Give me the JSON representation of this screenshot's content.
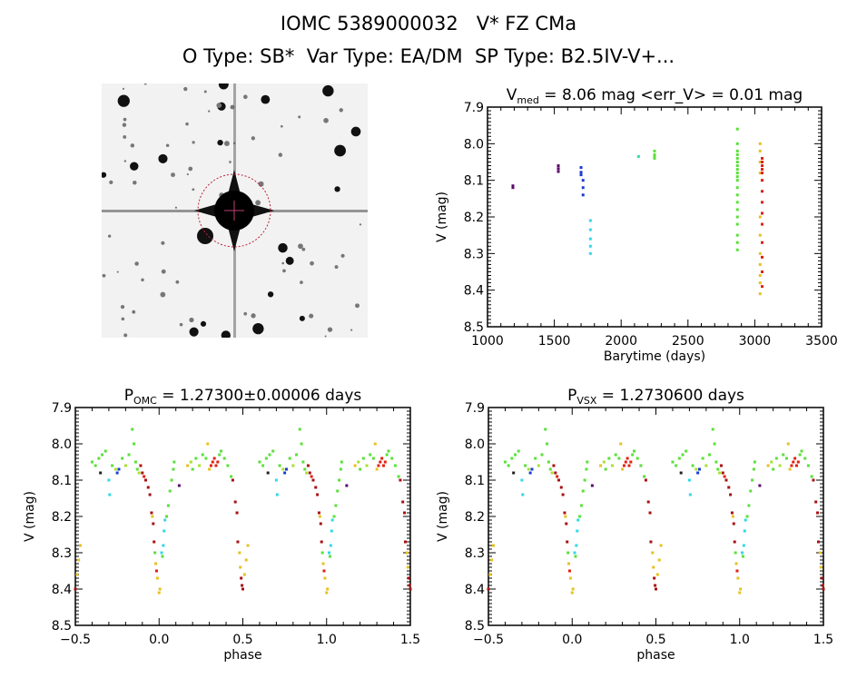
{
  "header": {
    "title_line1": "IOMC 5389000032   V* FZ CMa",
    "title_line2": "O Type: SB*  Var Type: EA/DM  SP Type: B2.5IV-V+..."
  },
  "image_panel": {
    "description_kind": "sky-image",
    "colormap": "inverted-grayscale",
    "circle_color": "#c0203a"
  },
  "colors": {
    "purple": "#5a0a6a",
    "blue": "#1a3cd0",
    "cyan": "#30d8e8",
    "teal": "#30e0a0",
    "green": "#5ae03a",
    "lime": "#a8e030",
    "yellow": "#e8c020",
    "red": "#e02010",
    "darkred": "#a81010",
    "black": "#202020"
  },
  "chart_data": [
    {
      "type": "scatter",
      "title_main": "V",
      "title_sub": "med",
      "title_rest": " = 8.06 mag <err_V> = 0.01 mag",
      "xlabel": "Barytime (days)",
      "ylabel": "V (mag)",
      "xlim": [
        1000,
        3500
      ],
      "ylim": [
        8.5,
        7.9
      ],
      "xticks": [
        "1000",
        "1500",
        "2000",
        "2500",
        "3000",
        "3500"
      ],
      "yticks": [
        "7.9",
        "8.0",
        "8.1",
        "8.2",
        "8.3",
        "8.4",
        "8.5"
      ],
      "groups": [
        {
          "color": "purple",
          "t": 1190,
          "v": [
            8.115,
            8.12
          ]
        },
        {
          "color": "purple",
          "t": 1530,
          "v": [
            8.06,
            8.068,
            8.076
          ]
        },
        {
          "color": "blue",
          "t": 1700,
          "v": [
            8.065,
            8.078,
            8.085
          ]
        },
        {
          "color": "blue",
          "t": 1715,
          "v": [
            8.1,
            8.12,
            8.14
          ]
        },
        {
          "color": "cyan",
          "t": 1770,
          "v": [
            8.21,
            8.235,
            8.26,
            8.28,
            8.3
          ]
        },
        {
          "color": "teal",
          "t": 2130,
          "v": [
            8.035
          ]
        },
        {
          "color": "green",
          "t": 2250,
          "v": [
            8.02,
            8.03,
            8.035,
            8.04
          ]
        },
        {
          "color": "green",
          "t": 2870,
          "v": [
            7.96,
            8.0,
            8.02,
            8.03,
            8.04,
            8.05,
            8.06,
            8.07,
            8.08,
            8.09,
            8.1,
            8.12,
            8.14,
            8.16,
            8.18,
            8.2,
            8.22,
            8.25,
            8.27,
            8.29
          ]
        },
        {
          "color": "yellow",
          "t": 3040,
          "v": [
            8.0,
            8.02,
            8.05,
            8.08,
            8.2,
            8.25,
            8.3,
            8.33,
            8.36,
            8.38,
            8.41
          ]
        },
        {
          "color": "red",
          "t": 3055,
          "v": [
            8.04,
            8.05,
            8.06,
            8.07,
            8.08,
            8.1,
            8.13,
            8.16,
            8.19,
            8.22,
            8.27,
            8.31,
            8.35,
            8.39
          ]
        }
      ]
    },
    {
      "type": "scatter",
      "title_main": "P",
      "title_sub": "OMC",
      "title_rest": " = 1.27300±0.00006 days",
      "xlabel": "phase",
      "ylabel": "V (mag)",
      "xlim": [
        -0.5,
        1.5
      ],
      "ylim": [
        8.5,
        7.9
      ],
      "xticks": [
        "-0.5",
        "0.0",
        "0.5",
        "1.0",
        "1.5"
      ],
      "yticks": [
        "7.9",
        "8.0",
        "8.1",
        "8.2",
        "8.3",
        "8.4",
        "8.5"
      ]
    },
    {
      "type": "scatter",
      "title_main": "P",
      "title_sub": "VSX",
      "title_rest": " = 1.2730600 days",
      "xlabel": "phase",
      "ylabel": "V (mag)",
      "xlim": [
        -0.5,
        1.5
      ],
      "ylim": [
        8.5,
        7.9
      ],
      "xticks": [
        "-0.5",
        "0.0",
        "0.5",
        "1.0",
        "1.5"
      ],
      "yticks": [
        "7.9",
        "8.0",
        "8.1",
        "8.2",
        "8.3",
        "8.4",
        "8.5"
      ]
    }
  ],
  "phase_points": [
    [
      0.0,
      8.41,
      "yellow"
    ],
    [
      0.005,
      8.4,
      "yellow"
    ],
    [
      0.99,
      8.37,
      "yellow"
    ],
    [
      0.985,
      8.35,
      "red"
    ],
    [
      0.98,
      8.33,
      "yellow"
    ],
    [
      0.975,
      8.3,
      "green"
    ],
    [
      0.97,
      8.27,
      "darkred"
    ],
    [
      0.965,
      8.22,
      "darkred"
    ],
    [
      0.96,
      8.2,
      "yellow"
    ],
    [
      0.955,
      8.19,
      "darkred"
    ],
    [
      0.945,
      8.14,
      "darkred"
    ],
    [
      0.935,
      8.12,
      "darkred"
    ],
    [
      0.92,
      8.1,
      "darkred"
    ],
    [
      0.91,
      8.09,
      "red"
    ],
    [
      0.9,
      8.08,
      "darkred"
    ],
    [
      0.89,
      8.06,
      "darkred"
    ],
    [
      0.015,
      8.3,
      "cyan"
    ],
    [
      0.025,
      8.28,
      "cyan"
    ],
    [
      0.03,
      8.24,
      "cyan"
    ],
    [
      0.035,
      8.21,
      "cyan"
    ],
    [
      0.02,
      8.31,
      "green"
    ],
    [
      0.045,
      8.2,
      "green"
    ],
    [
      0.055,
      8.17,
      "green"
    ],
    [
      0.065,
      8.13,
      "green"
    ],
    [
      0.075,
      8.1,
      "green"
    ],
    [
      0.085,
      8.07,
      "green"
    ],
    [
      0.09,
      8.05,
      "green"
    ],
    [
      0.12,
      8.115,
      "purple"
    ],
    [
      0.17,
      8.06,
      "yellow"
    ],
    [
      0.19,
      8.05,
      "lime"
    ],
    [
      0.2,
      8.07,
      "green"
    ],
    [
      0.22,
      8.04,
      "green"
    ],
    [
      0.24,
      8.06,
      "lime"
    ],
    [
      0.26,
      8.03,
      "green"
    ],
    [
      0.28,
      8.04,
      "green"
    ],
    [
      0.29,
      8.0,
      "yellow"
    ],
    [
      0.3,
      8.07,
      "yellow"
    ],
    [
      0.31,
      8.06,
      "red"
    ],
    [
      0.32,
      8.05,
      "red"
    ],
    [
      0.33,
      8.04,
      "red"
    ],
    [
      0.34,
      8.06,
      "red"
    ],
    [
      0.35,
      8.05,
      "red"
    ],
    [
      0.36,
      8.03,
      "green"
    ],
    [
      0.37,
      8.02,
      "green"
    ],
    [
      0.39,
      8.04,
      "green"
    ],
    [
      0.41,
      8.06,
      "green"
    ],
    [
      0.43,
      8.09,
      "green"
    ],
    [
      0.44,
      8.1,
      "darkred"
    ],
    [
      0.455,
      8.16,
      "darkred"
    ],
    [
      0.465,
      8.19,
      "darkred"
    ],
    [
      0.47,
      8.27,
      "darkred"
    ],
    [
      0.48,
      8.3,
      "yellow"
    ],
    [
      0.485,
      8.34,
      "yellow"
    ],
    [
      0.49,
      8.37,
      "darkred"
    ],
    [
      0.495,
      8.39,
      "darkred"
    ],
    [
      0.5,
      8.4,
      "darkred"
    ],
    [
      0.51,
      8.36,
      "yellow"
    ],
    [
      0.52,
      8.32,
      "yellow"
    ],
    [
      0.53,
      8.28,
      "yellow"
    ],
    [
      0.6,
      8.05,
      "green"
    ],
    [
      0.62,
      8.06,
      "green"
    ],
    [
      0.64,
      8.04,
      "green"
    ],
    [
      0.65,
      8.08,
      "black"
    ],
    [
      0.66,
      8.03,
      "green"
    ],
    [
      0.68,
      8.02,
      "green"
    ],
    [
      0.7,
      8.1,
      "cyan"
    ],
    [
      0.705,
      8.14,
      "cyan"
    ],
    [
      0.72,
      8.06,
      "green"
    ],
    [
      0.74,
      8.07,
      "lime"
    ],
    [
      0.75,
      8.08,
      "blue"
    ],
    [
      0.76,
      8.07,
      "blue"
    ],
    [
      0.78,
      8.04,
      "green"
    ],
    [
      0.8,
      8.06,
      "lime"
    ],
    [
      0.82,
      8.03,
      "green"
    ],
    [
      0.84,
      7.96,
      "green"
    ],
    [
      0.85,
      8.0,
      "green"
    ],
    [
      0.86,
      8.05,
      "green"
    ],
    [
      0.87,
      8.07,
      "green"
    ],
    [
      0.88,
      8.08,
      "lime"
    ]
  ]
}
